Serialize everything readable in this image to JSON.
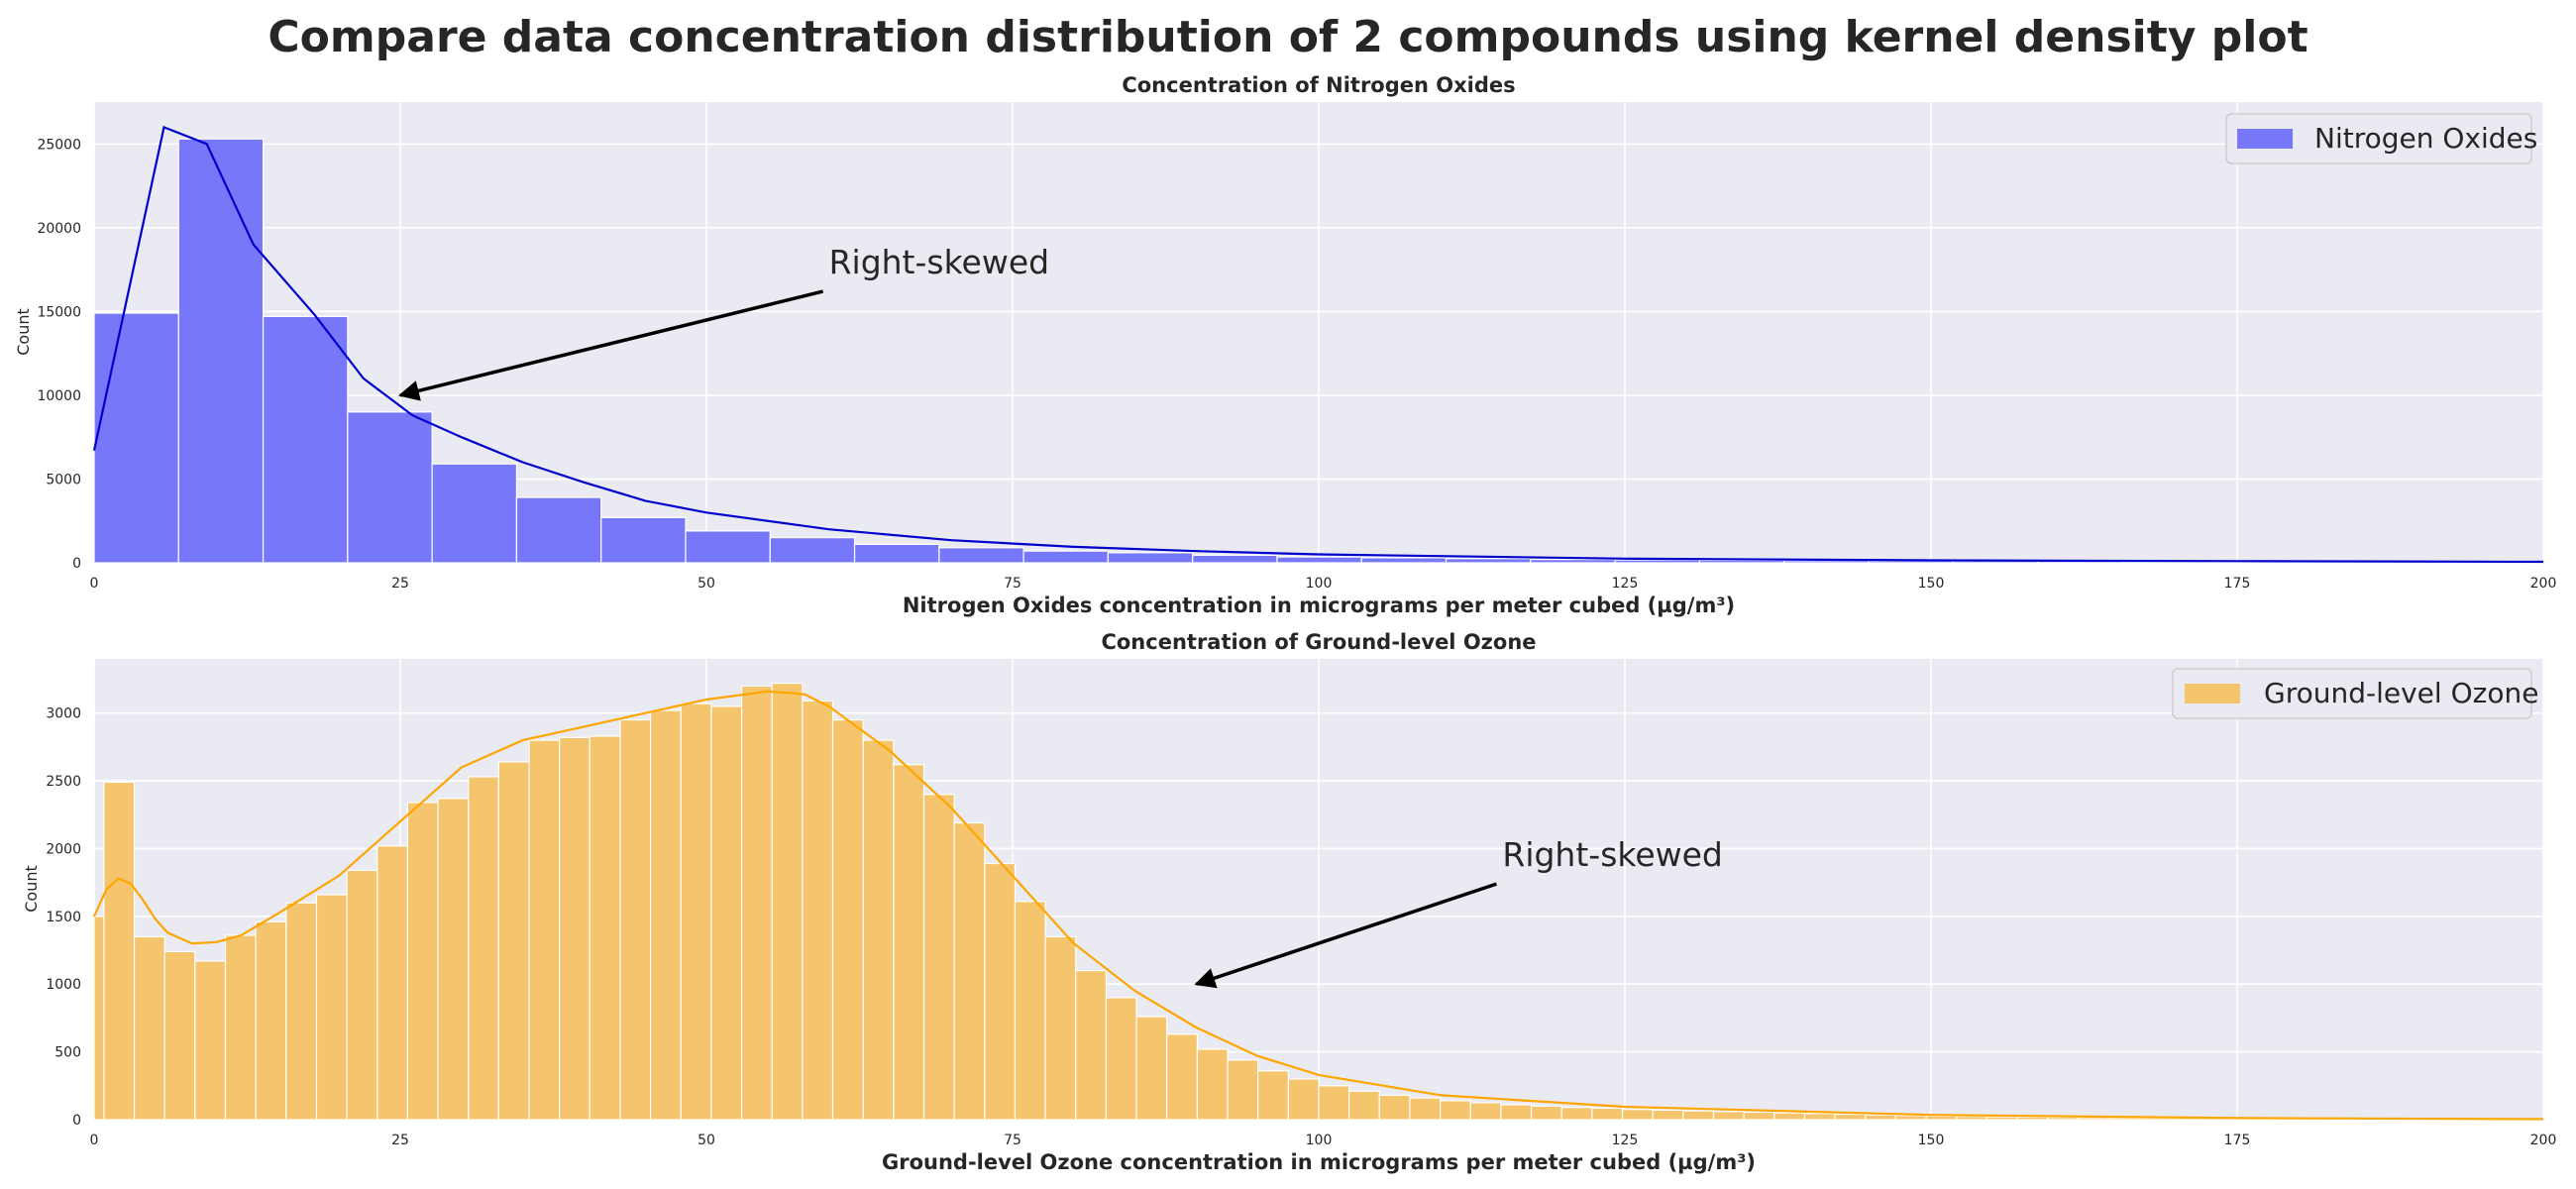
{
  "figure_title": "Compare data concentration distribution of 2 compounds using kernel density plot",
  "colors": {
    "panel_bg": "#EAEAF2",
    "grid": "#FFFFFF",
    "nox_fill": "#7777FA",
    "nox_line": "#0000CC",
    "ozone_fill": "#F4C56D",
    "ozone_line": "#FFA500"
  },
  "chart_data": [
    {
      "type": "bar",
      "title": "Concentration of Nitrogen Oxides",
      "xlabel": "Nitrogen Oxides concentration in micrograms per meter cubed (µg/m³)",
      "ylabel": "Count",
      "xlim": [
        0,
        200
      ],
      "ylim": [
        0,
        27500
      ],
      "xticks": [
        0,
        25,
        50,
        75,
        100,
        125,
        150,
        175,
        200
      ],
      "yticks": [
        0,
        5000,
        10000,
        15000,
        20000,
        25000
      ],
      "grid": true,
      "legend": {
        "label": "Nitrogen Oxides",
        "placement": "upper-right"
      },
      "bin_width": 6.9,
      "bin_starts": [
        0,
        6.9,
        13.8,
        20.7,
        27.6,
        34.5,
        41.4,
        48.3,
        55.2,
        62.1,
        69,
        75.9,
        82.8,
        89.7,
        96.6,
        103.5,
        110.4,
        117.3,
        124.2,
        131.1,
        138,
        144.9,
        151.8,
        158.7,
        165.6,
        172.5,
        179.4,
        186.3,
        193.2
      ],
      "values": [
        14900,
        25300,
        14700,
        9000,
        5900,
        3900,
        2700,
        1900,
        1500,
        1100,
        900,
        700,
        600,
        450,
        350,
        300,
        250,
        200,
        170,
        150,
        130,
        110,
        100,
        90,
        80,
        70,
        60,
        50,
        40
      ],
      "kde": {
        "x": [
          0,
          5.7,
          9.2,
          13,
          18,
          22,
          26,
          30,
          35,
          40,
          45,
          50,
          60,
          70,
          80,
          90,
          100,
          125,
          150,
          175,
          200
        ],
        "y": [
          6700,
          26000,
          25000,
          19000,
          14800,
          11000,
          8800,
          7500,
          6000,
          4800,
          3700,
          3000,
          2000,
          1350,
          950,
          700,
          500,
          250,
          150,
          100,
          60
        ]
      },
      "annotation": {
        "text": "Right-skewed",
        "xytext": [
          60,
          17500
        ],
        "xy": [
          25,
          10000
        ]
      }
    },
    {
      "type": "bar",
      "title": "Concentration of Ground-level Ozone",
      "xlabel": "Ground-level Ozone concentration in micrograms per meter cubed (µg/m³)",
      "ylabel": "Count",
      "xlim": [
        0,
        200
      ],
      "ylim": [
        0,
        3400
      ],
      "xticks": [
        0,
        25,
        50,
        75,
        100,
        125,
        150,
        175,
        200
      ],
      "yticks": [
        0,
        500,
        1000,
        1500,
        2000,
        2500,
        3000
      ],
      "grid": true,
      "legend": {
        "label": "Ground-level Ozone",
        "placement": "upper-right"
      },
      "bin_width": 2.48,
      "bin_starts": [
        0,
        0.8,
        3.28,
        5.76,
        8.24,
        10.72,
        13.2,
        15.68,
        18.16,
        20.64,
        23.12,
        25.6,
        28.08,
        30.56,
        33.04,
        35.52,
        38,
        40.48,
        42.96,
        45.44,
        47.92,
        50.4,
        52.88,
        55.36,
        57.84,
        60.32,
        62.8,
        65.28,
        67.76,
        70.24,
        72.72,
        75.2,
        77.68,
        80.16,
        82.64,
        85.12,
        87.6,
        90.08,
        92.56,
        95.04,
        97.52,
        100,
        102.48,
        104.96,
        107.44,
        109.92,
        112.4,
        114.88,
        117.36,
        119.84,
        122.32,
        124.8,
        127.28,
        129.76,
        132.24,
        134.72,
        137.2,
        139.68,
        142.16,
        144.64,
        147.12,
        149.6,
        152.08,
        154.56,
        157.04,
        159.52,
        162,
        164.48,
        166.96,
        169.44,
        171.92,
        174.4,
        176.88,
        179.36,
        181.84,
        184.32,
        186.8,
        189.28,
        191.76,
        194.24,
        196.72
      ],
      "values": [
        1500,
        2490,
        1350,
        1240,
        1170,
        1360,
        1460,
        1600,
        1660,
        1840,
        2020,
        2340,
        2370,
        2530,
        2640,
        2800,
        2820,
        2830,
        2950,
        3020,
        3070,
        3050,
        3200,
        3220,
        3090,
        2950,
        2800,
        2620,
        2400,
        2190,
        1890,
        1610,
        1350,
        1100,
        900,
        760,
        630,
        520,
        440,
        360,
        300,
        250,
        210,
        180,
        160,
        140,
        125,
        110,
        100,
        90,
        85,
        75,
        70,
        65,
        60,
        55,
        50,
        45,
        40,
        35,
        30,
        27,
        24,
        21,
        19,
        17,
        15,
        13,
        12,
        11,
        10,
        9,
        8,
        7,
        6,
        5,
        5,
        4,
        4,
        3,
        3
      ],
      "kde": {
        "x": [
          0,
          1,
          2,
          3,
          4,
          5,
          6,
          8,
          10,
          12,
          15,
          20,
          25,
          30,
          35,
          40,
          45,
          50,
          55,
          58,
          60,
          65,
          70,
          75,
          80,
          85,
          90,
          95,
          100,
          110,
          125,
          150,
          175,
          200
        ],
        "y": [
          1500,
          1700,
          1780,
          1740,
          1620,
          1480,
          1380,
          1300,
          1310,
          1360,
          1520,
          1800,
          2200,
          2600,
          2800,
          2900,
          3000,
          3100,
          3160,
          3140,
          3050,
          2720,
          2300,
          1800,
          1300,
          950,
          680,
          470,
          330,
          180,
          95,
          35,
          12,
          4
        ]
      },
      "annotation": {
        "text": "Right-skewed",
        "xytext": [
          115,
          1900
        ],
        "xy": [
          90,
          1000
        ]
      }
    }
  ]
}
